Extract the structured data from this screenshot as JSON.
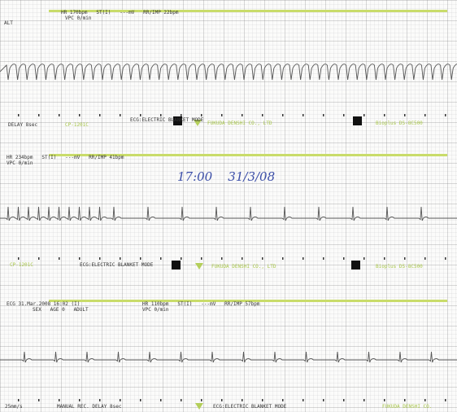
{
  "strips": [
    {
      "header": [
        "HR 170bpm   ST(I)   ---mV   RR/IMP 22bpm",
        "VPC 0/min",
        "ALT"
      ],
      "footer": [
        "DELAY 8sec",
        "CP-1201C",
        "ECG:ELECTRIC BLANKET MODE",
        "FUKUDA DENSHI CO., LTD",
        "Bioplus DS-8C500"
      ]
    },
    {
      "header": [
        "HR 234bpm   ST(I)   ---mV   RR/IMP 41bpm",
        "VPC 0/min"
      ],
      "note": "17:00    31/3/08",
      "footer": [
        "CP-1201C",
        "ECG:ELECTRIC BLANKET MODE",
        "FUKUDA DENSHI CO., LTD",
        "Bioplus DS-8C500"
      ]
    },
    {
      "header": [
        "ECG 31.Mar.2008 16:02 (I)",
        "SEX   AGE 0   ADULT",
        "HR 110bpm   ST(I)   ---mV   RR/IMP 57bpm",
        "VPC 0/min"
      ],
      "footer": [
        "25mm/s",
        "MANUAL REC. DELAY 8sec",
        "ECG:ELECTRIC BLANKET MODE",
        "FUKUDA DENSHI CO."
      ]
    }
  ]
}
